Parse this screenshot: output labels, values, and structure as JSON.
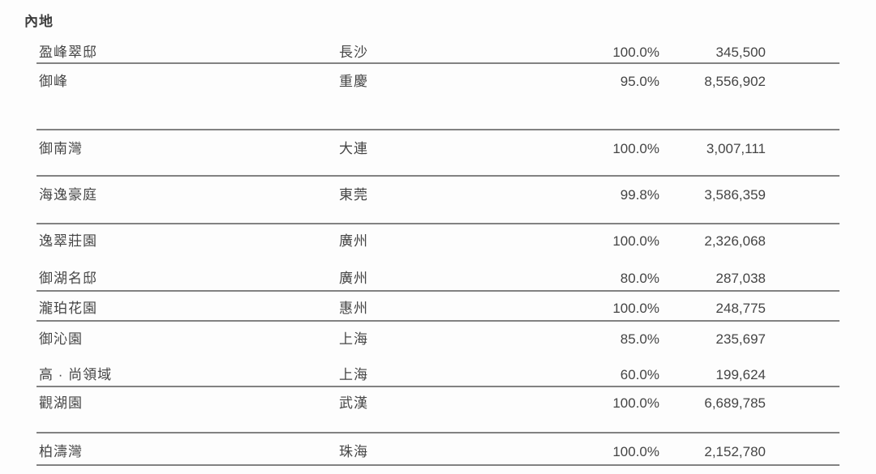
{
  "section": {
    "title": "內地"
  },
  "table": {
    "rows": [
      {
        "name": "盈峰翠邸",
        "city": "長沙",
        "interest": "100.0%",
        "area": "345,500"
      },
      {
        "name": "御峰",
        "city": "重慶",
        "interest": "95.0%",
        "area": "8,556,902"
      },
      {
        "name": "御南灣",
        "city": "大連",
        "interest": "100.0%",
        "area": "3,007,111"
      },
      {
        "name": "海逸豪庭",
        "city": "東莞",
        "interest": "99.8%",
        "area": "3,586,359"
      },
      {
        "name": "逸翠莊園",
        "city": "廣州",
        "interest": "100.0%",
        "area": "2,326,068"
      },
      {
        "name": "御湖名邸",
        "city": "廣州",
        "interest": "80.0%",
        "area": "287,038"
      },
      {
        "name": "瀧珀花園",
        "city": "惠州",
        "interest": "100.0%",
        "area": "248,775"
      },
      {
        "name": "御沁園",
        "city": "上海",
        "interest": "85.0%",
        "area": "235,697"
      },
      {
        "name": "高 · 尚領域",
        "city": "上海",
        "interest": "60.0%",
        "area": "199,624"
      },
      {
        "name": "觀湖園",
        "city": "武漢",
        "interest": "100.0%",
        "area": "6,689,785"
      },
      {
        "name": "柏濤灣",
        "city": "珠海",
        "interest": "100.0%",
        "area": "2,152,780"
      }
    ]
  },
  "colors": {
    "text": "#454545",
    "rule": "#828282",
    "background": "#fdfdfd"
  }
}
